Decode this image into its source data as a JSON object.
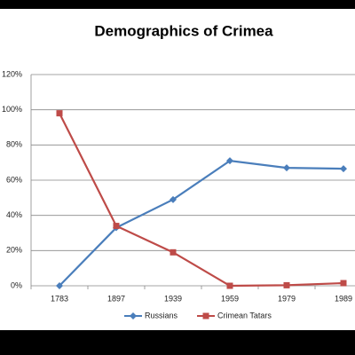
{
  "chart_data": {
    "type": "line",
    "title": "Demographics of Crimea",
    "categories": [
      "1783",
      "1897",
      "1939",
      "1959",
      "1979",
      "1989"
    ],
    "series": [
      {
        "name": "Russians",
        "color": "#4a7ebb",
        "marker": "diamond",
        "values": [
          0,
          33,
          49,
          71,
          67,
          66.5
        ]
      },
      {
        "name": "Crimean Tatars",
        "color": "#be4b48",
        "marker": "square",
        "values": [
          98,
          34,
          19,
          0,
          0.3,
          1.5
        ]
      }
    ],
    "ylim": [
      0,
      120
    ],
    "yticks": [
      {
        "value": 0,
        "label": "0%"
      },
      {
        "value": 20,
        "label": "20%"
      },
      {
        "value": 40,
        "label": "40%"
      },
      {
        "value": 60,
        "label": "60%"
      },
      {
        "value": 80,
        "label": "80%"
      },
      {
        "value": 100,
        "label": "100%"
      },
      {
        "value": 120,
        "label": "120%"
      }
    ],
    "grid": true,
    "legend": "bottom"
  }
}
